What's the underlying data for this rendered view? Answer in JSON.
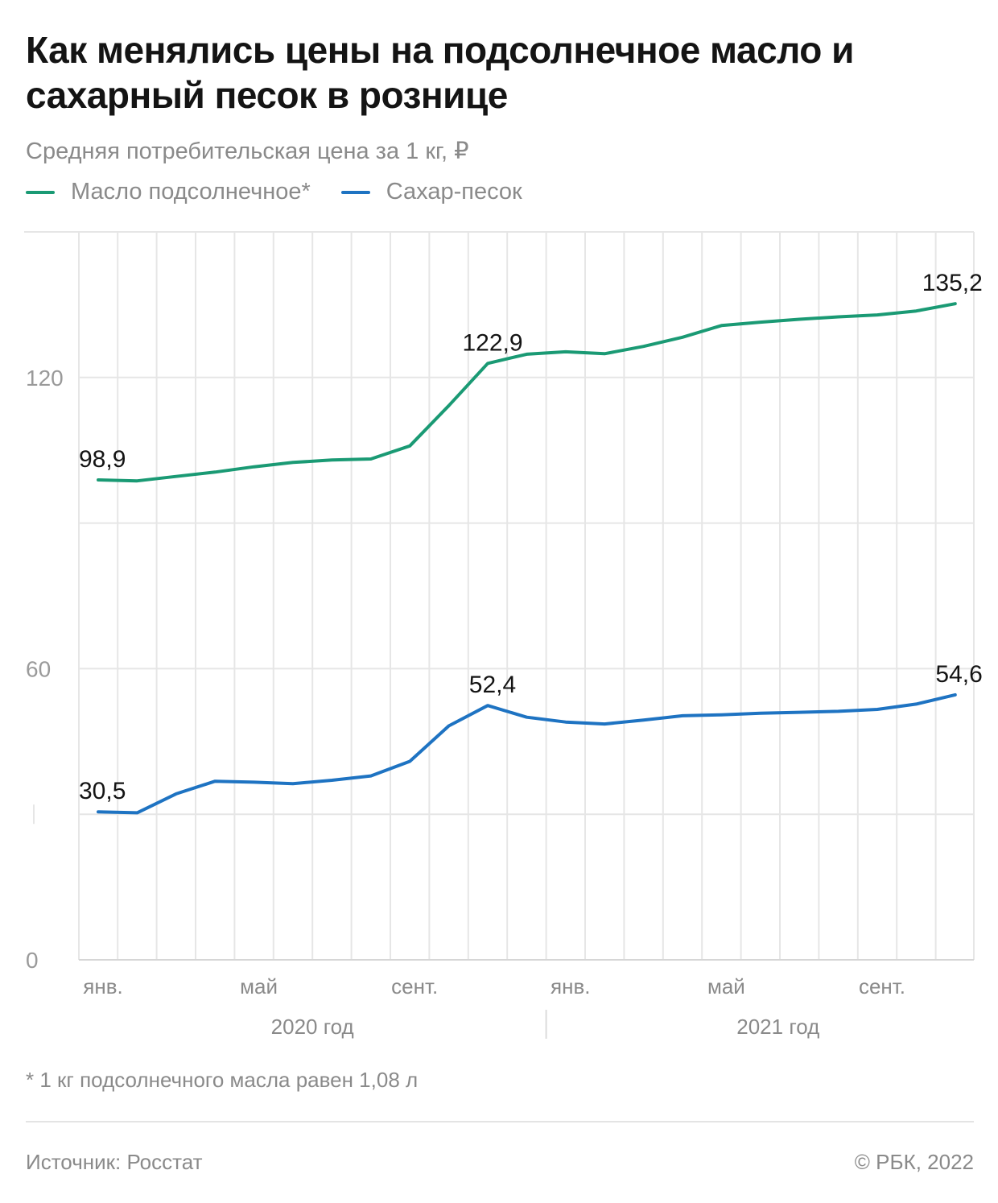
{
  "header": {
    "title": "Как менялись цены на подсолнечное масло и сахарный песок в рознице",
    "subtitle": "Средняя потребительская цена за 1 кг, ₽"
  },
  "legend": [
    {
      "label": "Масло подсолнечное*",
      "color": "#1a9a74"
    },
    {
      "label": "Сахар-песок",
      "color": "#1e73c2"
    }
  ],
  "chart_data": {
    "type": "line",
    "x": [
      "янв. 2020",
      "февр. 2020",
      "март 2020",
      "апр. 2020",
      "май 2020",
      "июнь 2020",
      "июль 2020",
      "авг. 2020",
      "сент. 2020",
      "окт. 2020",
      "нояб. 2020",
      "дек. 2020",
      "янв. 2021",
      "февр. 2021",
      "март 2021",
      "апр. 2021",
      "май 2021",
      "июнь 2021",
      "июль 2021",
      "авг. 2021",
      "сент. 2021",
      "окт. 2021",
      "нояб. 2021"
    ],
    "x_tick_labels": [
      {
        "index": 0,
        "label": "янв."
      },
      {
        "index": 4,
        "label": "май"
      },
      {
        "index": 8,
        "label": "сент."
      },
      {
        "index": 12,
        "label": "янв."
      },
      {
        "index": 16,
        "label": "май"
      },
      {
        "index": 20,
        "label": "сент."
      }
    ],
    "year_groups": [
      {
        "label": "2020 год",
        "start": 0,
        "end": 11
      },
      {
        "label": "2021 год",
        "start": 12,
        "end": 22
      }
    ],
    "y_ticks": [
      {
        "value": 0,
        "label": "0"
      },
      {
        "value": 60,
        "label": "60"
      },
      {
        "value": 120,
        "label": "120"
      }
    ],
    "ylim": [
      0,
      150
    ],
    "grid": true,
    "series": [
      {
        "name": "Масло подсолнечное*",
        "color": "#1a9a74",
        "values": [
          98.9,
          98.7,
          99.6,
          100.5,
          101.6,
          102.5,
          103.0,
          103.2,
          105.9,
          114.2,
          122.9,
          124.8,
          125.3,
          124.9,
          126.4,
          128.3,
          130.7,
          131.4,
          132.0,
          132.5,
          132.9,
          133.7,
          135.2
        ],
        "data_labels": [
          {
            "index": 0,
            "label": "98,9"
          },
          {
            "index": 10,
            "label": "122,9"
          },
          {
            "index": 22,
            "label": "135,2"
          }
        ]
      },
      {
        "name": "Сахар-песок",
        "color": "#1e73c2",
        "values": [
          30.5,
          30.3,
          34.2,
          36.8,
          36.6,
          36.3,
          37.0,
          37.9,
          40.9,
          48.2,
          52.4,
          50.0,
          49.0,
          48.6,
          49.4,
          50.3,
          50.5,
          50.8,
          51.0,
          51.2,
          51.6,
          52.7,
          54.6
        ],
        "data_labels": [
          {
            "index": 0,
            "label": "30,5"
          },
          {
            "index": 10,
            "label": "52,4"
          },
          {
            "index": 22,
            "label": "54,6"
          }
        ]
      }
    ]
  },
  "footer": {
    "footnote": "* 1 кг подсолнечного масла равен 1,08 л",
    "source": "Источник: Росстат",
    "copyright": "© РБК, 2022"
  }
}
